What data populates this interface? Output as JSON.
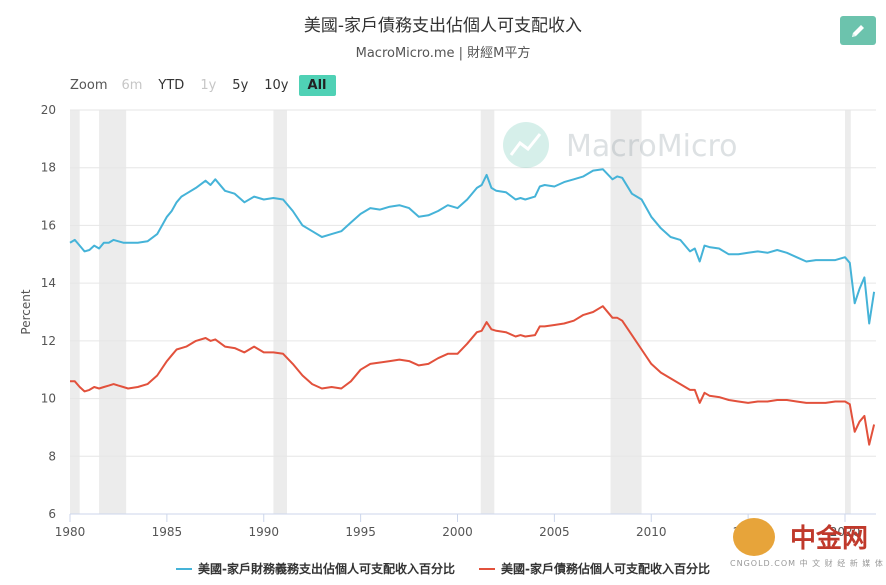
{
  "header": {
    "title": "美國-家戶債務支出佔個人可支配收入",
    "subtitle": "MacroMicro.me | 財經M平方"
  },
  "toolbar": {
    "edit_icon": "pencil-icon",
    "zoom_label": "Zoom",
    "zoom_options": [
      {
        "label": "6m",
        "state": "disabled"
      },
      {
        "label": "YTD",
        "state": "normal"
      },
      {
        "label": "1y",
        "state": "disabled"
      },
      {
        "label": "5y",
        "state": "normal"
      },
      {
        "label": "10y",
        "state": "normal"
      },
      {
        "label": "All",
        "state": "active"
      }
    ]
  },
  "watermark": {
    "text": "MacroMicro",
    "icon": "chart-logo-icon"
  },
  "corner_logo": {
    "text": "中金网",
    "sub": "CNGOLD.COM",
    "tagline": "中 文 财 经 新 媒 体",
    "icon": "cngold-logo-icon"
  },
  "chart_data": {
    "type": "line",
    "ylabel": "Percent",
    "xlabel": "",
    "ylim": [
      6,
      20
    ],
    "yticks": [
      "6",
      "8",
      "10",
      "12",
      "14",
      "16",
      "18",
      "20"
    ],
    "xlim": [
      1980,
      2021.6
    ],
    "xticks": [
      "1980",
      "1985",
      "1990",
      "1995",
      "2000",
      "2005",
      "2010",
      "2015",
      "2020"
    ],
    "grid": "horizontal",
    "legend_position": "bottom",
    "recessions": [
      [
        1980.0,
        1980.5
      ],
      [
        1981.5,
        1982.9
      ],
      [
        1990.5,
        1991.2
      ],
      [
        2001.2,
        2001.9
      ],
      [
        2007.9,
        2009.5
      ],
      [
        2020.0,
        2020.3
      ]
    ],
    "series": [
      {
        "name": "美國-家戶財務義務支出佔個人可支配收入百分比",
        "color": "#45b3d8",
        "x": [
          1980.0,
          1980.25,
          1980.5,
          1980.75,
          1981.0,
          1981.25,
          1981.5,
          1981.75,
          1982.0,
          1982.25,
          1982.5,
          1982.75,
          1983.0,
          1983.5,
          1984.0,
          1984.5,
          1985.0,
          1985.25,
          1985.5,
          1985.75,
          1986.0,
          1986.5,
          1987.0,
          1987.25,
          1987.5,
          1988.0,
          1988.5,
          1989.0,
          1989.5,
          1990.0,
          1990.5,
          1991.0,
          1991.5,
          1992.0,
          1992.5,
          1993.0,
          1993.5,
          1994.0,
          1994.5,
          1995.0,
          1995.5,
          1996.0,
          1996.5,
          1997.0,
          1997.5,
          1998.0,
          1998.5,
          1999.0,
          1999.5,
          2000.0,
          2000.5,
          2001.0,
          2001.25,
          2001.5,
          2001.75,
          2002.0,
          2002.5,
          2003.0,
          2003.25,
          2003.5,
          2004.0,
          2004.25,
          2004.5,
          2005.0,
          2005.5,
          2006.0,
          2006.5,
          2007.0,
          2007.5,
          2008.0,
          2008.25,
          2008.5,
          2009.0,
          2009.5,
          2010.0,
          2010.5,
          2011.0,
          2011.5,
          2012.0,
          2012.25,
          2012.5,
          2012.75,
          2013.0,
          2013.5,
          2014.0,
          2014.5,
          2015.0,
          2015.5,
          2016.0,
          2016.5,
          2017.0,
          2017.5,
          2018.0,
          2018.5,
          2019.0,
          2019.5,
          2020.0,
          2020.25,
          2020.5,
          2020.75,
          2021.0,
          2021.25,
          2021.5
        ],
        "values": [
          15.4,
          15.5,
          15.3,
          15.1,
          15.15,
          15.3,
          15.2,
          15.4,
          15.4,
          15.5,
          15.45,
          15.4,
          15.4,
          15.4,
          15.45,
          15.7,
          16.3,
          16.5,
          16.8,
          17.0,
          17.1,
          17.3,
          17.55,
          17.4,
          17.6,
          17.2,
          17.1,
          16.8,
          17.0,
          16.9,
          16.95,
          16.9,
          16.5,
          16.0,
          15.8,
          15.6,
          15.7,
          15.8,
          16.1,
          16.4,
          16.6,
          16.55,
          16.65,
          16.7,
          16.6,
          16.3,
          16.35,
          16.5,
          16.7,
          16.6,
          16.9,
          17.3,
          17.4,
          17.75,
          17.3,
          17.2,
          17.15,
          16.9,
          16.95,
          16.9,
          17.0,
          17.35,
          17.4,
          17.35,
          17.5,
          17.6,
          17.7,
          17.9,
          17.95,
          17.6,
          17.7,
          17.65,
          17.1,
          16.9,
          16.3,
          15.9,
          15.6,
          15.5,
          15.1,
          15.2,
          14.75,
          15.3,
          15.25,
          15.2,
          15.0,
          15.0,
          15.05,
          15.1,
          15.05,
          15.15,
          15.05,
          14.9,
          14.75,
          14.8,
          14.8,
          14.8,
          14.9,
          14.7,
          13.3,
          13.8,
          14.2,
          12.6,
          13.7
        ]
      },
      {
        "name": "美國-家戶債務佔個人可支配收入百分比",
        "color": "#e2513c",
        "x": [
          1980.0,
          1980.25,
          1980.5,
          1980.75,
          1981.0,
          1981.25,
          1981.5,
          1981.75,
          1982.0,
          1982.25,
          1982.5,
          1982.75,
          1983.0,
          1983.5,
          1984.0,
          1984.5,
          1985.0,
          1985.25,
          1985.5,
          1985.75,
          1986.0,
          1986.5,
          1987.0,
          1987.25,
          1987.5,
          1988.0,
          1988.5,
          1989.0,
          1989.5,
          1990.0,
          1990.5,
          1991.0,
          1991.5,
          1992.0,
          1992.5,
          1993.0,
          1993.5,
          1994.0,
          1994.5,
          1995.0,
          1995.5,
          1996.0,
          1996.5,
          1997.0,
          1997.5,
          1998.0,
          1998.5,
          1999.0,
          1999.5,
          2000.0,
          2000.5,
          2001.0,
          2001.25,
          2001.5,
          2001.75,
          2002.0,
          2002.5,
          2003.0,
          2003.25,
          2003.5,
          2004.0,
          2004.25,
          2004.5,
          2005.0,
          2005.5,
          2006.0,
          2006.5,
          2007.0,
          2007.5,
          2008.0,
          2008.25,
          2008.5,
          2009.0,
          2009.5,
          2010.0,
          2010.5,
          2011.0,
          2011.5,
          2012.0,
          2012.25,
          2012.5,
          2012.75,
          2013.0,
          2013.5,
          2014.0,
          2014.5,
          2015.0,
          2015.5,
          2016.0,
          2016.5,
          2017.0,
          2017.5,
          2018.0,
          2018.5,
          2019.0,
          2019.5,
          2020.0,
          2020.25,
          2020.5,
          2020.75,
          2021.0,
          2021.25,
          2021.5
        ],
        "values": [
          10.6,
          10.6,
          10.4,
          10.25,
          10.3,
          10.4,
          10.35,
          10.4,
          10.45,
          10.5,
          10.45,
          10.4,
          10.35,
          10.4,
          10.5,
          10.8,
          11.3,
          11.5,
          11.7,
          11.75,
          11.8,
          12.0,
          12.1,
          12.0,
          12.05,
          11.8,
          11.75,
          11.6,
          11.8,
          11.6,
          11.6,
          11.55,
          11.2,
          10.8,
          10.5,
          10.35,
          10.4,
          10.35,
          10.6,
          11.0,
          11.2,
          11.25,
          11.3,
          11.35,
          11.3,
          11.15,
          11.2,
          11.4,
          11.55,
          11.55,
          11.9,
          12.3,
          12.35,
          12.65,
          12.4,
          12.35,
          12.3,
          12.15,
          12.2,
          12.15,
          12.2,
          12.5,
          12.5,
          12.55,
          12.6,
          12.7,
          12.9,
          13.0,
          13.2,
          12.8,
          12.8,
          12.7,
          12.2,
          11.7,
          11.2,
          10.9,
          10.7,
          10.5,
          10.3,
          10.3,
          9.85,
          10.2,
          10.1,
          10.05,
          9.95,
          9.9,
          9.85,
          9.9,
          9.9,
          9.95,
          9.95,
          9.9,
          9.85,
          9.85,
          9.85,
          9.9,
          9.9,
          9.8,
          8.85,
          9.2,
          9.4,
          8.4,
          9.1
        ]
      }
    ]
  }
}
